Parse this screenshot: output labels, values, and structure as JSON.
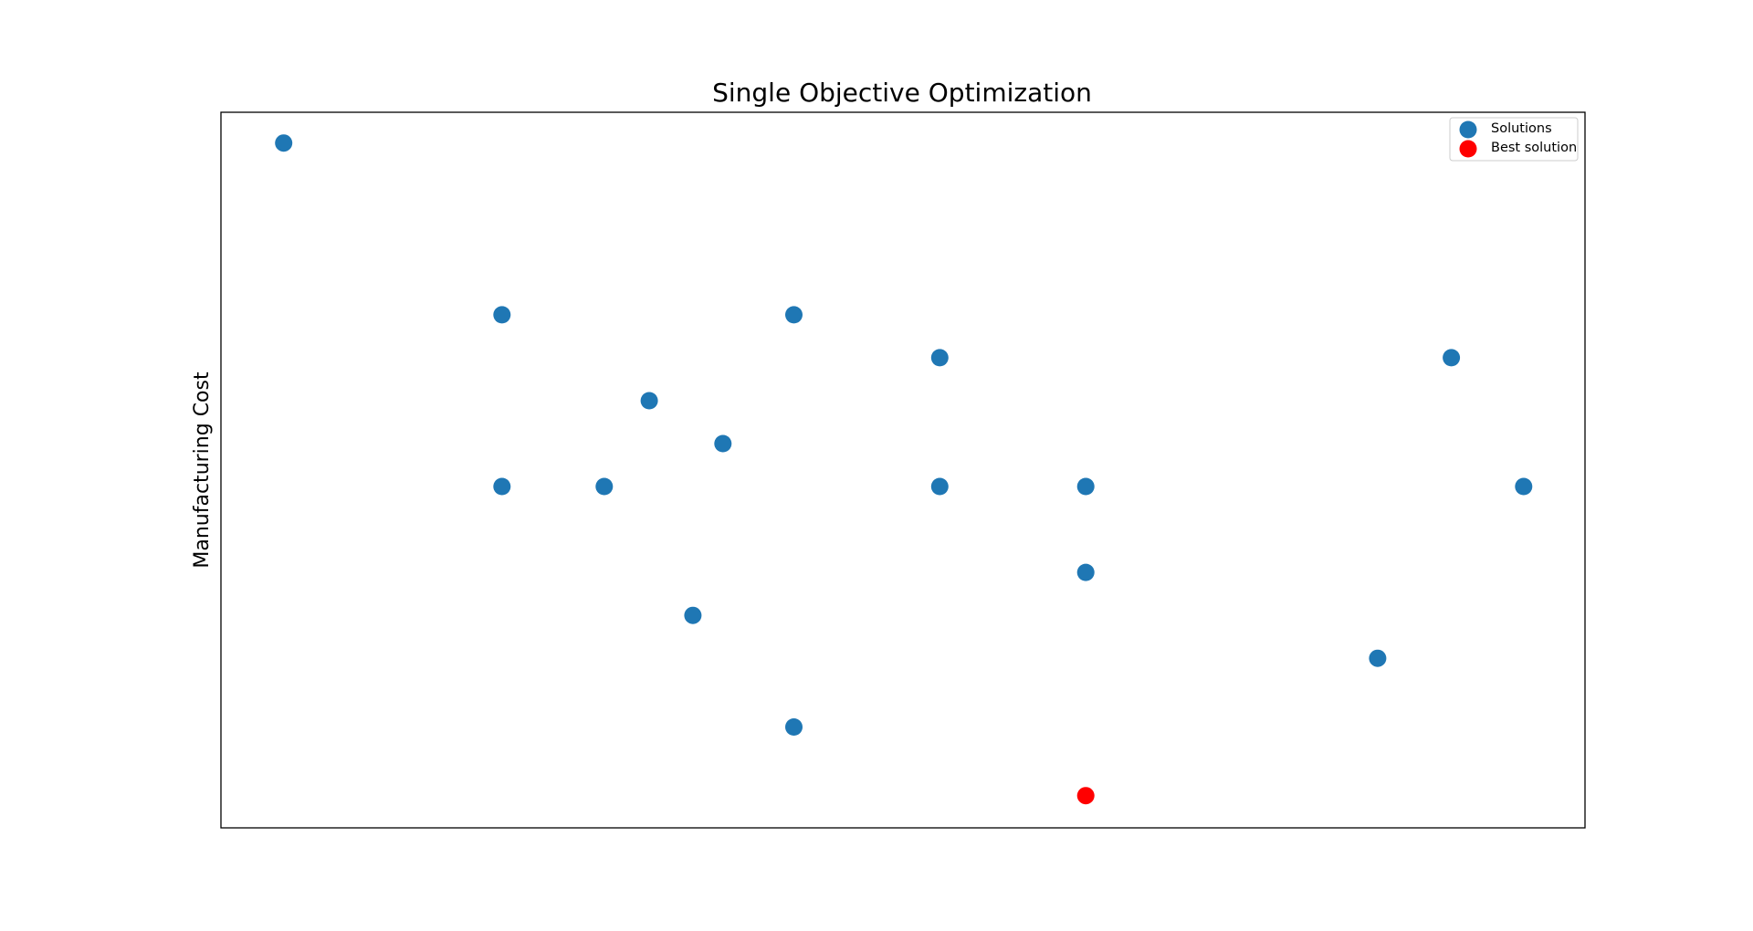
{
  "chart_data": {
    "type": "scatter",
    "title": "Single Objective Optimization",
    "xlabel": "",
    "ylabel": "Manufacturing Cost",
    "xlim": [
      0,
      1
    ],
    "ylim": [
      0,
      1
    ],
    "x_ticks_visible": false,
    "y_ticks_visible": false,
    "grid": false,
    "legend_position": "top-right",
    "series": [
      {
        "name": "Solutions",
        "color": "#1f77b4",
        "points": [
          {
            "x": 0.046,
            "y": 0.957
          },
          {
            "x": 0.206,
            "y": 0.717
          },
          {
            "x": 0.42,
            "y": 0.717
          },
          {
            "x": 0.527,
            "y": 0.657
          },
          {
            "x": 0.314,
            "y": 0.597
          },
          {
            "x": 0.368,
            "y": 0.537
          },
          {
            "x": 0.206,
            "y": 0.477
          },
          {
            "x": 0.281,
            "y": 0.477
          },
          {
            "x": 0.527,
            "y": 0.477
          },
          {
            "x": 0.634,
            "y": 0.477
          },
          {
            "x": 0.634,
            "y": 0.357
          },
          {
            "x": 0.346,
            "y": 0.297
          },
          {
            "x": 0.848,
            "y": 0.237
          },
          {
            "x": 0.42,
            "y": 0.141
          },
          {
            "x": 0.902,
            "y": 0.657
          },
          {
            "x": 0.955,
            "y": 0.477
          }
        ]
      },
      {
        "name": "Best solution",
        "color": "#ff0000",
        "points": [
          {
            "x": 0.634,
            "y": 0.045
          }
        ]
      }
    ]
  }
}
